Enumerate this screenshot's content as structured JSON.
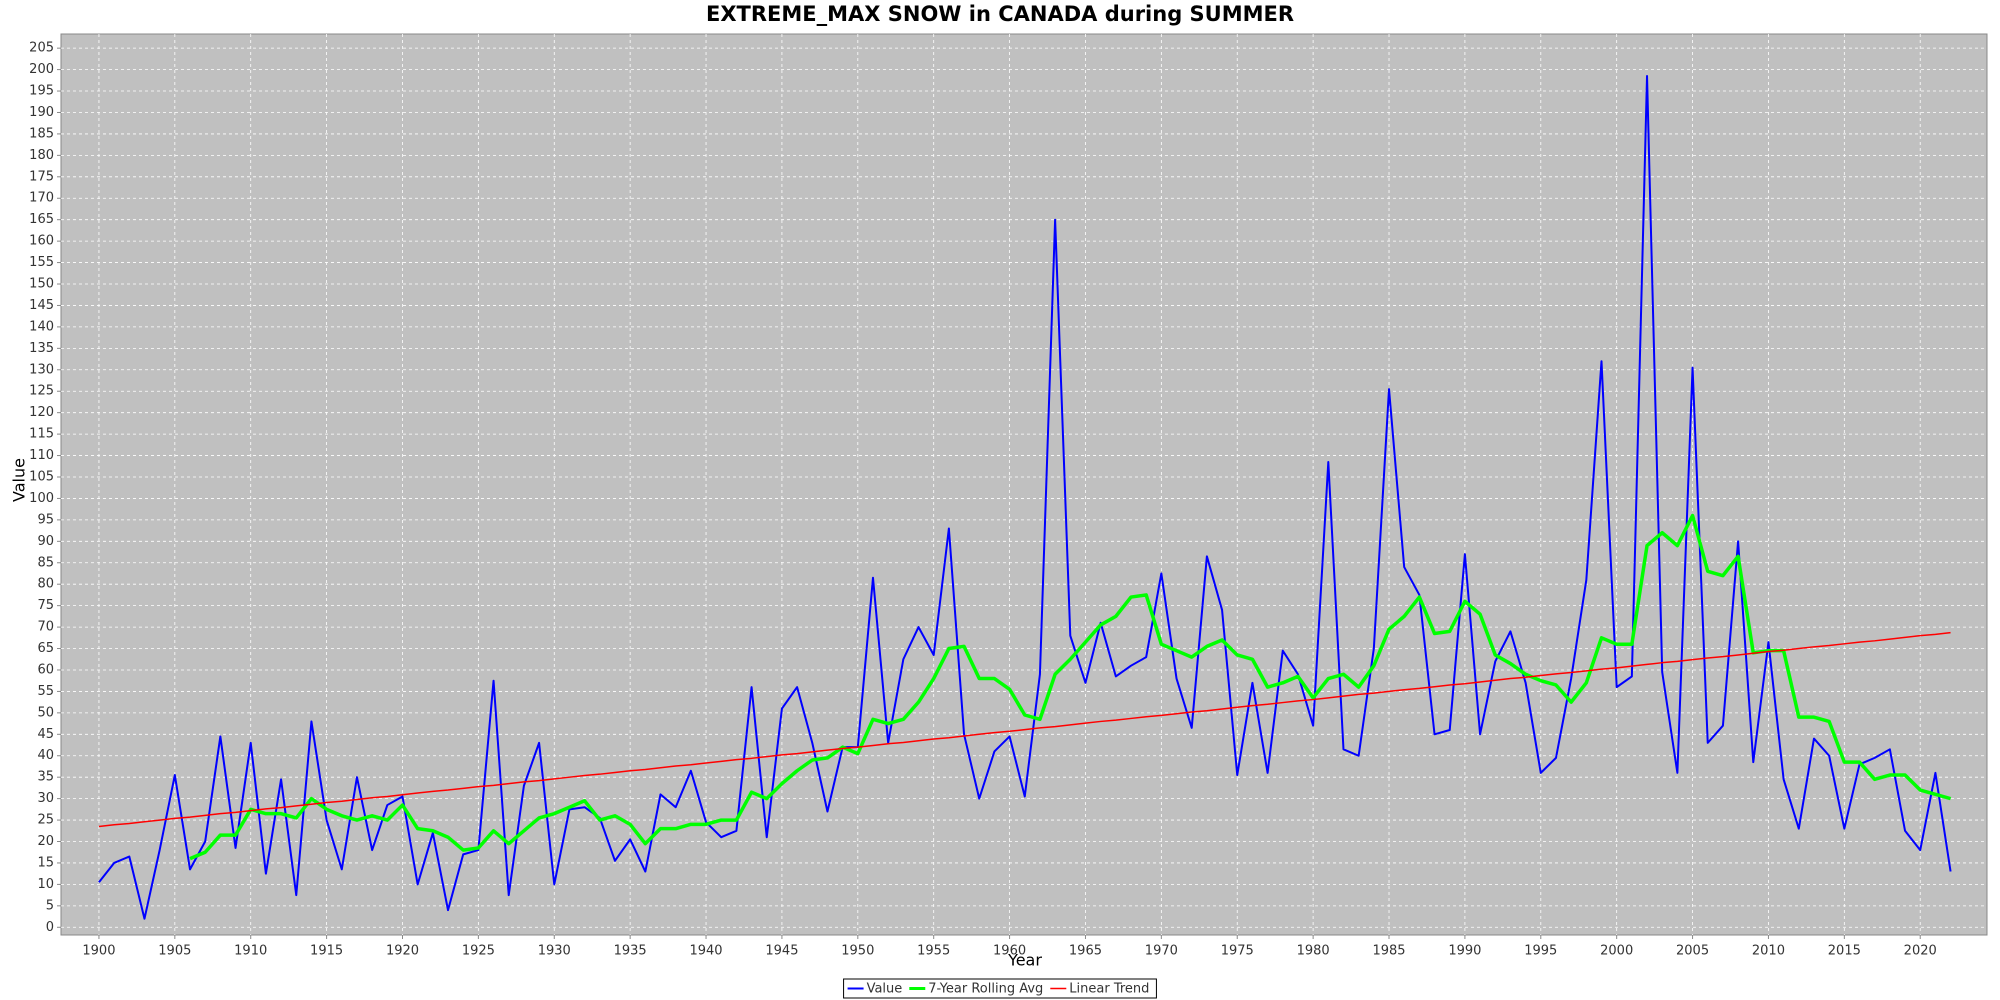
{
  "chart_data": {
    "type": "line",
    "title": "EXTREME_MAX SNOW in CANADA during SUMMER",
    "x_label": "Year",
    "y_label": "Value",
    "x": [
      1900,
      1901,
      1902,
      1903,
      1904,
      1905,
      1906,
      1907,
      1908,
      1909,
      1910,
      1911,
      1912,
      1913,
      1914,
      1915,
      1916,
      1917,
      1918,
      1919,
      1920,
      1921,
      1922,
      1923,
      1924,
      1925,
      1926,
      1927,
      1928,
      1929,
      1930,
      1931,
      1932,
      1933,
      1934,
      1935,
      1936,
      1937,
      1938,
      1939,
      1940,
      1941,
      1942,
      1943,
      1944,
      1945,
      1946,
      1947,
      1948,
      1949,
      1950,
      1951,
      1952,
      1953,
      1954,
      1955,
      1956,
      1957,
      1958,
      1959,
      1960,
      1961,
      1962,
      1963,
      1964,
      1965,
      1966,
      1967,
      1968,
      1969,
      1970,
      1971,
      1972,
      1973,
      1974,
      1975,
      1976,
      1977,
      1978,
      1979,
      1980,
      1981,
      1982,
      1983,
      1984,
      1985,
      1986,
      1987,
      1988,
      1989,
      1990,
      1991,
      1992,
      1993,
      1994,
      1995,
      1996,
      1997,
      1998,
      1999,
      2000,
      2001,
      2002,
      2003,
      2004,
      2005,
      2006,
      2007,
      2008,
      2009,
      2010,
      2011,
      2012,
      2013,
      2014,
      2015,
      2016,
      2017,
      2018,
      2019,
      2020,
      2021,
      2022
    ],
    "series": [
      {
        "name": "Value",
        "color": "#0000ff",
        "width": 2,
        "values": [
          10.5,
          15,
          16.5,
          2,
          18,
          35.5,
          13.5,
          20,
          44.5,
          18.5,
          43,
          12.5,
          34.5,
          7.5,
          48,
          25,
          13.5,
          35,
          18,
          28.5,
          30.5,
          10,
          22,
          4,
          17,
          18,
          57.5,
          7.5,
          33,
          43,
          10,
          27.5,
          28,
          25.5,
          15.5,
          20.5,
          13,
          31,
          28,
          36.5,
          24.5,
          21,
          22.5,
          56,
          21,
          51,
          56,
          43,
          27,
          42,
          42,
          81.5,
          43,
          62.5,
          70,
          63.5,
          93,
          45,
          30,
          41,
          44.5,
          30.5,
          59,
          165,
          68,
          57,
          71,
          58.5,
          61,
          63,
          82.5,
          58,
          46.5,
          86.5,
          74,
          35.5,
          57,
          36,
          64.5,
          59,
          47,
          108.5,
          41.5,
          40,
          65,
          125.5,
          84,
          77.5,
          45,
          46,
          87,
          45,
          62,
          69,
          57,
          36,
          39.5,
          58,
          81,
          132,
          56,
          58.5,
          198.5,
          59.5,
          36,
          130.5,
          43,
          47,
          90,
          38.5,
          66.5,
          34.5,
          23,
          44,
          40,
          23,
          38,
          39.5,
          41.5,
          22.5,
          18,
          36,
          13
        ]
      },
      {
        "name": "7-Year Rolling Avg",
        "color": "#00ff00",
        "width": 3.5,
        "values": [
          null,
          null,
          null,
          null,
          null,
          null,
          16,
          17.5,
          21.5,
          21.5,
          27.5,
          26.5,
          26.5,
          25.5,
          30,
          27.5,
          26,
          25,
          26,
          25,
          28.5,
          23,
          22.5,
          21,
          18,
          18.5,
          22.5,
          19.5,
          22.5,
          25.5,
          26.5,
          28,
          29.5,
          25,
          26,
          24,
          19.5,
          23,
          23,
          24,
          24,
          25,
          25,
          31.5,
          30,
          33.5,
          36.5,
          39,
          39.5,
          42,
          40.5,
          48.5,
          47.5,
          48.5,
          52.5,
          58,
          65,
          65.5,
          58,
          58,
          55.5,
          49.5,
          48.5,
          59,
          62.5,
          66.5,
          70.5,
          72.5,
          77,
          77.5,
          66,
          64.5,
          63,
          65.5,
          67,
          63.5,
          62.5,
          56,
          57,
          58.5,
          53.5,
          58,
          59,
          56,
          61,
          69.5,
          72.5,
          77,
          68.5,
          69,
          76,
          73,
          63.5,
          61.5,
          59,
          57.5,
          56.5,
          52.5,
          57,
          67.5,
          66,
          66,
          89,
          92,
          89,
          96,
          83,
          82,
          86.5,
          64,
          64.5,
          64.5,
          49,
          49,
          48,
          38.5,
          38.5,
          34.5,
          35.5,
          35.5,
          32,
          31,
          30
        ]
      },
      {
        "name": "Linear Trend",
        "color": "#ff0000",
        "width": 1.5,
        "values": [
          23.5,
          23.9,
          24.2,
          24.6,
          25.0,
          25.4,
          25.7,
          26.1,
          26.5,
          26.8,
          27.2,
          27.6,
          27.9,
          28.3,
          28.7,
          29.1,
          29.4,
          29.8,
          30.2,
          30.5,
          30.9,
          31.3,
          31.7,
          32.0,
          32.4,
          32.8,
          33.1,
          33.5,
          33.9,
          34.2,
          34.6,
          35.0,
          35.4,
          35.7,
          36.1,
          36.5,
          36.8,
          37.2,
          37.6,
          37.9,
          38.3,
          38.7,
          39.1,
          39.4,
          39.8,
          40.2,
          40.5,
          40.9,
          41.3,
          41.7,
          42.0,
          42.4,
          42.8,
          43.1,
          43.5,
          43.9,
          44.2,
          44.6,
          45.0,
          45.4,
          45.7,
          46.1,
          46.5,
          46.8,
          47.2,
          47.6,
          48.0,
          48.3,
          48.7,
          49.1,
          49.4,
          49.8,
          50.2,
          50.5,
          50.9,
          51.3,
          51.7,
          52.0,
          52.4,
          52.8,
          53.1,
          53.5,
          53.9,
          54.3,
          54.6,
          55.0,
          55.4,
          55.7,
          56.1,
          56.5,
          56.8,
          57.2,
          57.6,
          58.0,
          58.3,
          58.7,
          59.1,
          59.4,
          59.8,
          60.2,
          60.5,
          60.9,
          61.3,
          61.7,
          62.0,
          62.4,
          62.8,
          63.1,
          63.5,
          63.9,
          64.3,
          64.6,
          65.0,
          65.4,
          65.7,
          66.1,
          66.5,
          66.8,
          67.2,
          67.6,
          68.0,
          68.3,
          68.7
        ]
      }
    ],
    "xlim": [
      1897.5,
      2024.4
    ],
    "xticks": [
      1900,
      1905,
      1910,
      1915,
      1920,
      1925,
      1930,
      1935,
      1940,
      1945,
      1950,
      1955,
      1960,
      1965,
      1970,
      1975,
      1980,
      1985,
      1990,
      1995,
      2000,
      2005,
      2010,
      2015,
      2020
    ],
    "ylim": [
      -1.8,
      208.3
    ],
    "yticks": [
      0,
      5,
      10,
      15,
      20,
      25,
      30,
      35,
      40,
      45,
      50,
      55,
      60,
      65,
      70,
      75,
      80,
      85,
      90,
      95,
      100,
      105,
      110,
      115,
      120,
      125,
      130,
      135,
      140,
      145,
      150,
      155,
      160,
      165,
      170,
      175,
      180,
      185,
      190,
      195,
      200,
      205
    ],
    "grid": true,
    "background": "#c0c0c0",
    "legend": "bottom"
  }
}
